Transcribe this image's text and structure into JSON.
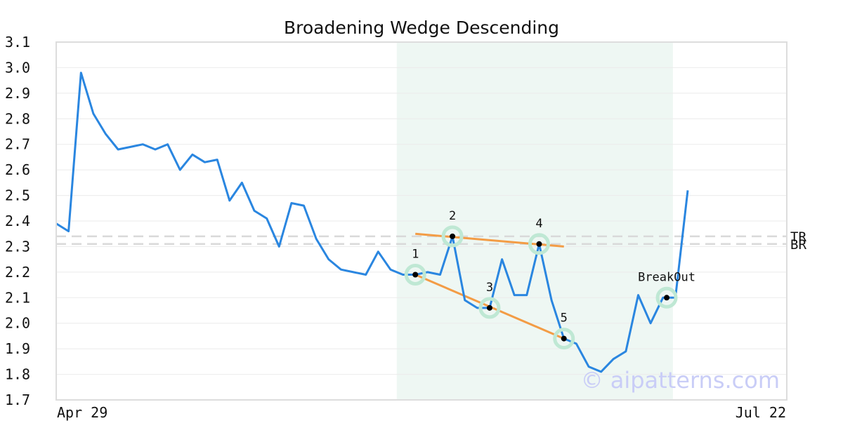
{
  "chart_data": {
    "type": "line",
    "title": "Broadening Wedge Descending",
    "xlabel": "",
    "ylabel": "",
    "ylim": [
      1.7,
      3.1
    ],
    "y_ticks": [
      "1.7",
      "1.8",
      "1.9",
      "2.0",
      "2.1",
      "2.2",
      "2.3",
      "2.4",
      "2.5",
      "2.6",
      "2.7",
      "2.8",
      "2.9",
      "3.0",
      "3.1"
    ],
    "x_tick_labels": [
      "Apr 29",
      "Jul 22"
    ],
    "grid": true,
    "line_color": "#2a86e0",
    "highlight_color": "#eef7f3",
    "trendline_color": "#f39c45",
    "marker_ring_color": "#bfe8d4",
    "series": [
      {
        "values": [
          2.39,
          2.36,
          2.98,
          2.82,
          2.74,
          2.68,
          2.69,
          2.7,
          2.68,
          2.7,
          2.6,
          2.66,
          2.63,
          2.64,
          2.48,
          2.55,
          2.44,
          2.41,
          2.3,
          2.47,
          2.46,
          2.33,
          2.25,
          2.21,
          2.2,
          2.19,
          2.28,
          2.21,
          2.19,
          2.19,
          2.2,
          2.19,
          2.34,
          2.09,
          2.06,
          2.06,
          2.25,
          2.11,
          2.11,
          2.31,
          2.09,
          1.94,
          1.92,
          1.83,
          1.81,
          1.86,
          1.89,
          2.11,
          2.0,
          2.1,
          2.1,
          2.52
        ]
      }
    ],
    "highlight_range": [
      27.5,
      49.8
    ],
    "pattern_points": [
      {
        "label": "1",
        "index": 29,
        "value": 2.19
      },
      {
        "label": "2",
        "index": 32,
        "value": 2.34
      },
      {
        "label": "3",
        "index": 35,
        "value": 2.06
      },
      {
        "label": "4",
        "index": 39,
        "value": 2.31
      },
      {
        "label": "5",
        "index": 41,
        "value": 1.94
      },
      {
        "label": "BreakOut",
        "index": 49.3,
        "value": 2.1
      }
    ],
    "trendlines": [
      {
        "from": [
          29,
          2.35
        ],
        "to": [
          41,
          2.3
        ]
      },
      {
        "from": [
          29,
          2.19
        ],
        "to": [
          41,
          1.94
        ]
      }
    ],
    "reference_lines": [
      {
        "label": "TR",
        "value": 2.34
      },
      {
        "label": "BR",
        "value": 2.31
      }
    ],
    "watermark": "© aipatterns.com"
  }
}
